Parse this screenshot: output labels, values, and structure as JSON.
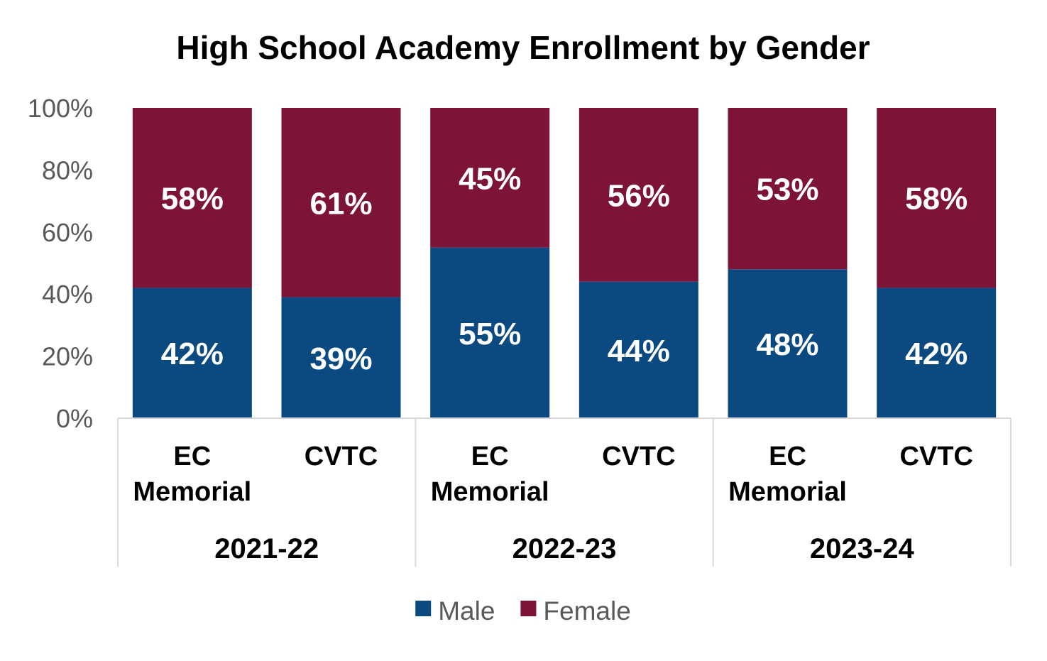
{
  "chart_data": {
    "type": "bar",
    "stacked": true,
    "title": "High School Academy Enrollment by Gender",
    "xlabel": "",
    "ylabel": "",
    "ylim": [
      0,
      100
    ],
    "yticks": [
      "0%",
      "20%",
      "40%",
      "60%",
      "80%",
      "100%"
    ],
    "groups": [
      {
        "label": "2021-22",
        "categories": [
          "EC Memorial",
          "CVTC"
        ]
      },
      {
        "label": "2022-23",
        "categories": [
          "EC Memorial",
          "CVTC"
        ]
      },
      {
        "label": "2023-24",
        "categories": [
          "EC Memorial",
          "CVTC"
        ]
      }
    ],
    "categories": [
      {
        "line1": "EC",
        "line2": "Memorial"
      },
      {
        "line1": "CVTC",
        "line2": ""
      },
      {
        "line1": "EC",
        "line2": "Memorial"
      },
      {
        "line1": "CVTC",
        "line2": ""
      },
      {
        "line1": "EC",
        "line2": "Memorial"
      },
      {
        "line1": "CVTC",
        "line2": ""
      }
    ],
    "series": [
      {
        "name": "Male",
        "color": "#0b4a80",
        "values": [
          42,
          39,
          55,
          44,
          48,
          42
        ]
      },
      {
        "name": "Female",
        "color": "#7d1437",
        "values": [
          58,
          61,
          45,
          56,
          53,
          58
        ]
      }
    ],
    "value_suffix": "%",
    "grid": false,
    "legend_position": "bottom"
  }
}
